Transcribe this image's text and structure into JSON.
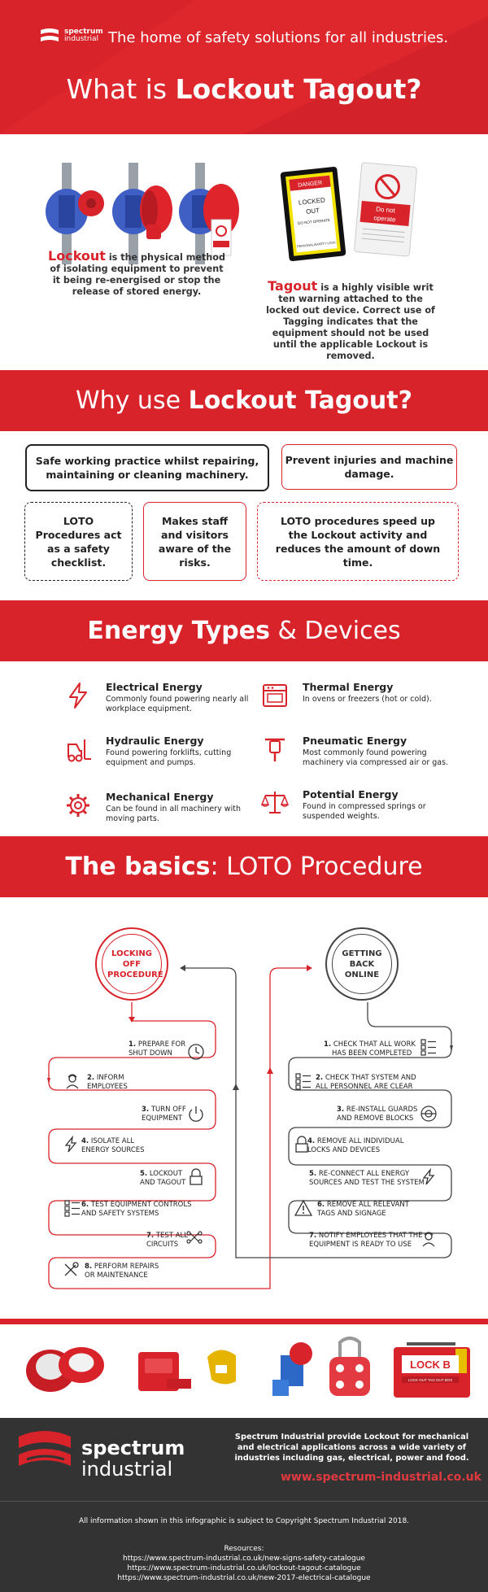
{
  "header": {
    "logo_name": "spectrum",
    "logo_sub": "industrial",
    "tagline": "The home of safety solutions for all industries.",
    "title_pre": "What is ",
    "title_bold": "Lockout Tagout?"
  },
  "intro": {
    "lockout_kw": "Lockout",
    "lockout_text": " is the physical method of isolating equipment to prevent it being re-energised or stop the release of stored energy.",
    "tagout_kw": "Tagout",
    "tagout_text": " is a highly visible writ ten warning attached to the locked out device. Correct use of Tagging indicates that the equipment should not be used until the applicable Lockout is removed.",
    "tag1_lines": [
      "DANGER",
      "LOCKED",
      "OUT",
      "DO NOT OPERATE",
      "PERSONAL/SAFETY LOCK"
    ],
    "tag2_lines": [
      "Do not",
      "operate"
    ]
  },
  "why": {
    "title_pre": "Why use ",
    "title_bold": "Lockout Tagout?",
    "reasons": [
      "Safe working practice whilst repairing, maintaining or cleaning machinery.",
      "Prevent injuries and machine damage.",
      "LOTO Procedures act as a safety checklist.",
      "Makes staff and visitors aware of the risks.",
      "LOTO procedures speed up the Lockout activity and reduces the amount of down time."
    ]
  },
  "energy": {
    "title_bold": "Energy Types",
    "title_rest": " & Devices",
    "items": [
      {
        "name": "Electrical Energy",
        "desc": "Commonly found powering nearly all workplace equipment.",
        "icon": "lightning-icon"
      },
      {
        "name": "Thermal Energy",
        "desc": "In ovens or freezers (hot or cold).",
        "icon": "oven-icon"
      },
      {
        "name": "Hydraulic Energy",
        "desc": "Found powering forklifts, cutting equipment and pumps.",
        "icon": "forklift-icon"
      },
      {
        "name": "Pneumatic Energy",
        "desc": "Most commonly found powering machinery via compressed air or gas.",
        "icon": "jackhammer-icon"
      },
      {
        "name": "Mechanical Energy",
        "desc": "Can be found in all machinery with moving parts.",
        "icon": "gear-icon"
      },
      {
        "name": "Potential Energy",
        "desc": "Found in compressed springs or suspended weights.",
        "icon": "scale-icon"
      }
    ]
  },
  "basics": {
    "title_bold": "The basics",
    "title_rest": ": LOTO Procedure",
    "left_circle": "LOCKING OFF PROCEDURE",
    "right_circle": "GETTING BACK ONLINE",
    "left_steps": [
      {
        "num": "1.",
        "l1": "PREPARE FOR",
        "l2": "SHUT DOWN"
      },
      {
        "num": "2.",
        "l1": "INFORM",
        "l2": "EMPLOYEES"
      },
      {
        "num": "3.",
        "l1": "TURN OFF",
        "l2": "EQUIPMENT"
      },
      {
        "num": "4.",
        "l1": "ISOLATE ALL",
        "l2": "ENERGY SOURCES"
      },
      {
        "num": "5.",
        "l1": "LOCKOUT",
        "l2": "AND TAGOUT"
      },
      {
        "num": "6.",
        "l1": "TEST EQUIPMENT CONTROLS",
        "l2": "AND SAFETY SYSTEMS"
      },
      {
        "num": "7.",
        "l1": "TEST ALL",
        "l2": "CIRCUITS"
      },
      {
        "num": "8.",
        "l1": "PERFORM REPAIRS",
        "l2": "OR MAINTENANCE"
      }
    ],
    "right_steps": [
      {
        "num": "1.",
        "l1": "CHECK THAT ALL WORK",
        "l2": "HAS BEEN COMPLETED"
      },
      {
        "num": "2.",
        "l1": "CHECK THAT SYSTEM AND",
        "l2": "ALL PERSONNEL ARE CLEAR"
      },
      {
        "num": "3.",
        "l1": "RE-INSTALL GUARDS",
        "l2": "AND REMOVE BLOCKS"
      },
      {
        "num": "4.",
        "l1": "REMOVE ALL INDIVIDUAL",
        "l2": "LOCKS AND DEVICES"
      },
      {
        "num": "5.",
        "l1": "RE-CONNECT ALL ENERGY",
        "l2": "SOURCES AND TEST THE SYSTEM"
      },
      {
        "num": "6.",
        "l1": "REMOVE ALL RELEVANT",
        "l2": "TAGS AND SIGNAGE"
      },
      {
        "num": "7.",
        "l1": "NOTIFY EMPLOYEES THAT THE",
        "l2": "EQUIPMENT IS READY TO USE"
      }
    ]
  },
  "products": {
    "lockbox_label": "LOCK B",
    "lockbox_sub": "LOCK OUT TAG OUT BOX"
  },
  "footer": {
    "logo_name": "spectrum",
    "logo_sub": "industrial",
    "description": "Spectrum Industrial provide Lockout for mechanical and electrical applications across a wide variety of industries including gas, electrical, power and food.",
    "url": "www.spectrum-industrial.co.uk",
    "copyright": "All information shown in this infographic is subject to Copyright Spectrum Industrial 2018.",
    "resources_label": "Resources:",
    "resources": [
      "https://www.spectrum-industrial.co.uk/new-signs-safety-catalogue",
      "https://www.spectrum-industrial.co.uk/lockout-tagout-catalogue",
      "https://www.spectrum-industrial.co.uk/new-2017-electrical-catalogue"
    ]
  },
  "colors": {
    "brand_red": "#d9232a",
    "dark": "#333333"
  }
}
